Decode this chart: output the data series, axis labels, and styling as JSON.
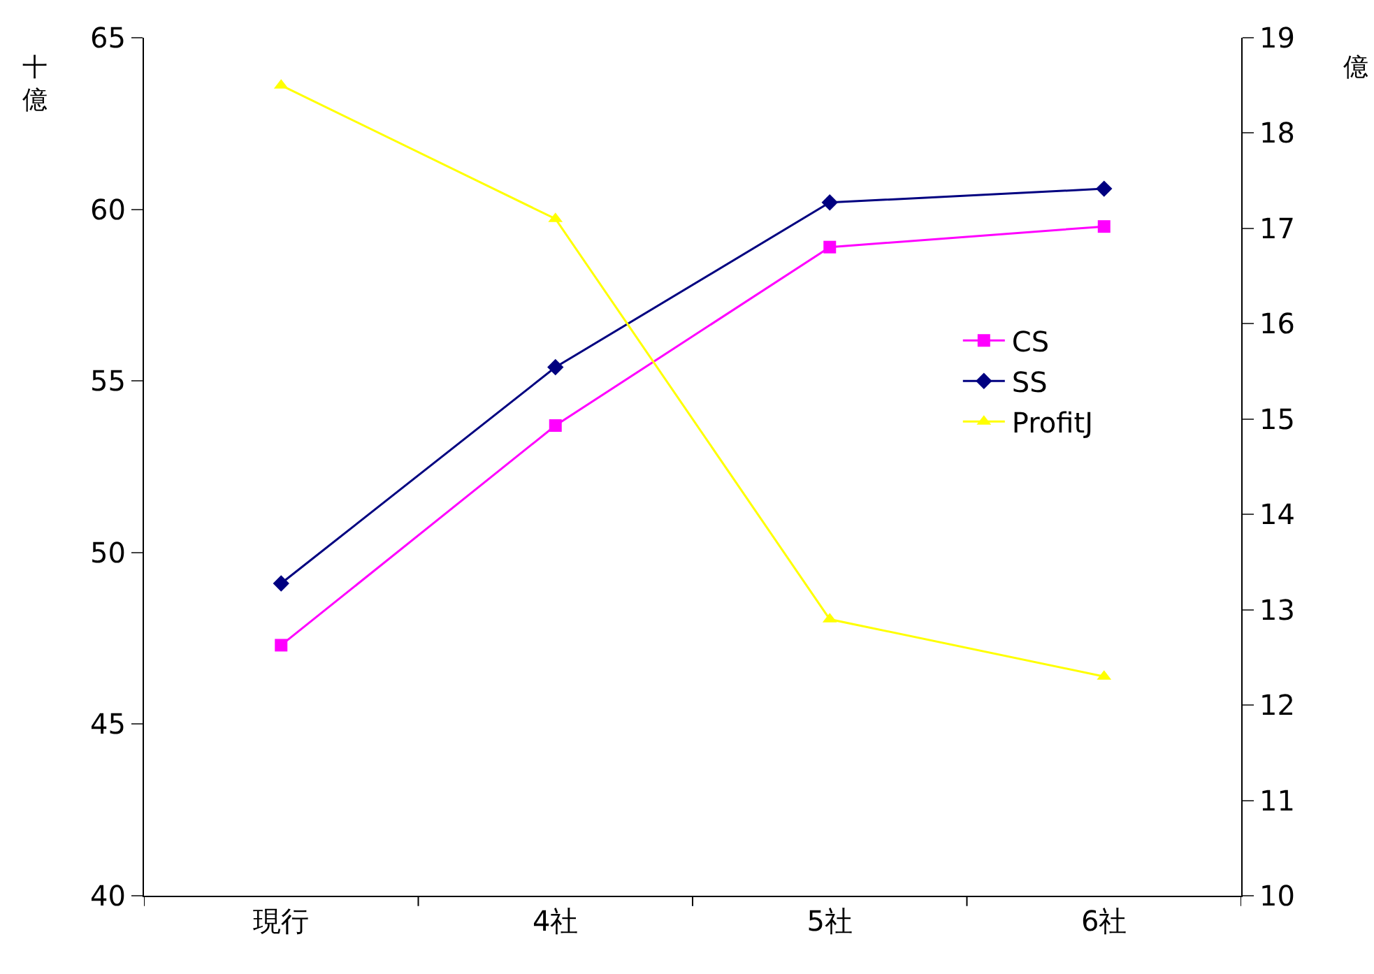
{
  "chart_data": {
    "type": "line",
    "ylabel": "十億",
    "y2label": "億",
    "categories": [
      "現行",
      "4社",
      "5社",
      "6社"
    ],
    "series": [
      {
        "name": "CS",
        "color": "#ff00ff",
        "marker": "square",
        "values": [
          47.3,
          53.7,
          58.9,
          59.5
        ]
      },
      {
        "name": "SS",
        "color": "#000080",
        "marker": "diamond",
        "values": [
          49.1,
          55.4,
          60.2,
          60.6
        ]
      },
      {
        "name": "ProfitJ",
        "color": "#ffff00",
        "marker": "triangle",
        "axis": "y2",
        "values": [
          18.5,
          17.1,
          12.9,
          12.3
        ]
      }
    ],
    "ylim": [
      40,
      65
    ],
    "yticks": [
      40,
      45,
      50,
      55,
      60,
      65
    ],
    "y2lim": [
      10,
      19
    ],
    "y2ticks": [
      10,
      11,
      12,
      13,
      14,
      15,
      16,
      17,
      18,
      19
    ],
    "legend": "right",
    "line_style": "solid"
  }
}
